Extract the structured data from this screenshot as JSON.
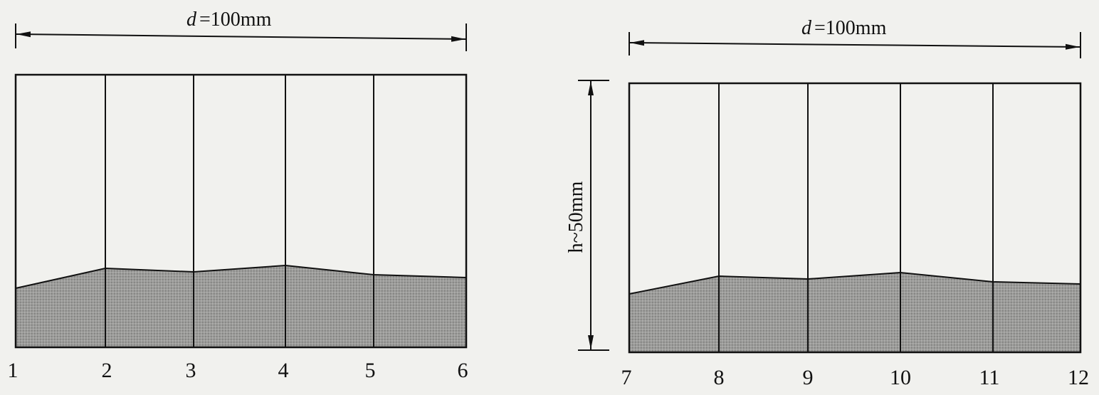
{
  "panels": [
    {
      "dimension": {
        "variable": "d",
        "value": "=100mm"
      },
      "points": [
        "1",
        "2",
        "3",
        "4",
        "5",
        "6"
      ]
    },
    {
      "dimension": {
        "variable": "d",
        "value": "=100mm"
      },
      "points": [
        "7",
        "8",
        "9",
        "10",
        "11",
        "12"
      ]
    }
  ],
  "height_label": "h~50mm"
}
